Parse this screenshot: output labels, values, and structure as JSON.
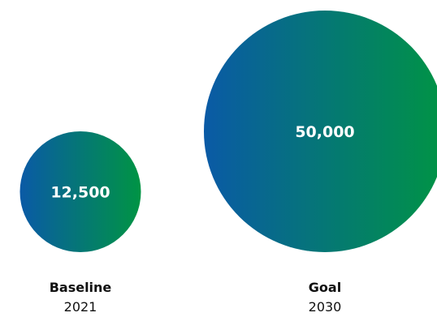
{
  "chart_data": {
    "type": "bubble",
    "categories": [
      "Baseline",
      "Goal"
    ],
    "subcategories": [
      "2021",
      "2030"
    ],
    "values": [
      12500,
      50000
    ],
    "value_labels": [
      "12,500",
      "50,000"
    ],
    "colors": {
      "gradient_start": "#0a5aa6",
      "gradient_end": "#009444"
    }
  }
}
